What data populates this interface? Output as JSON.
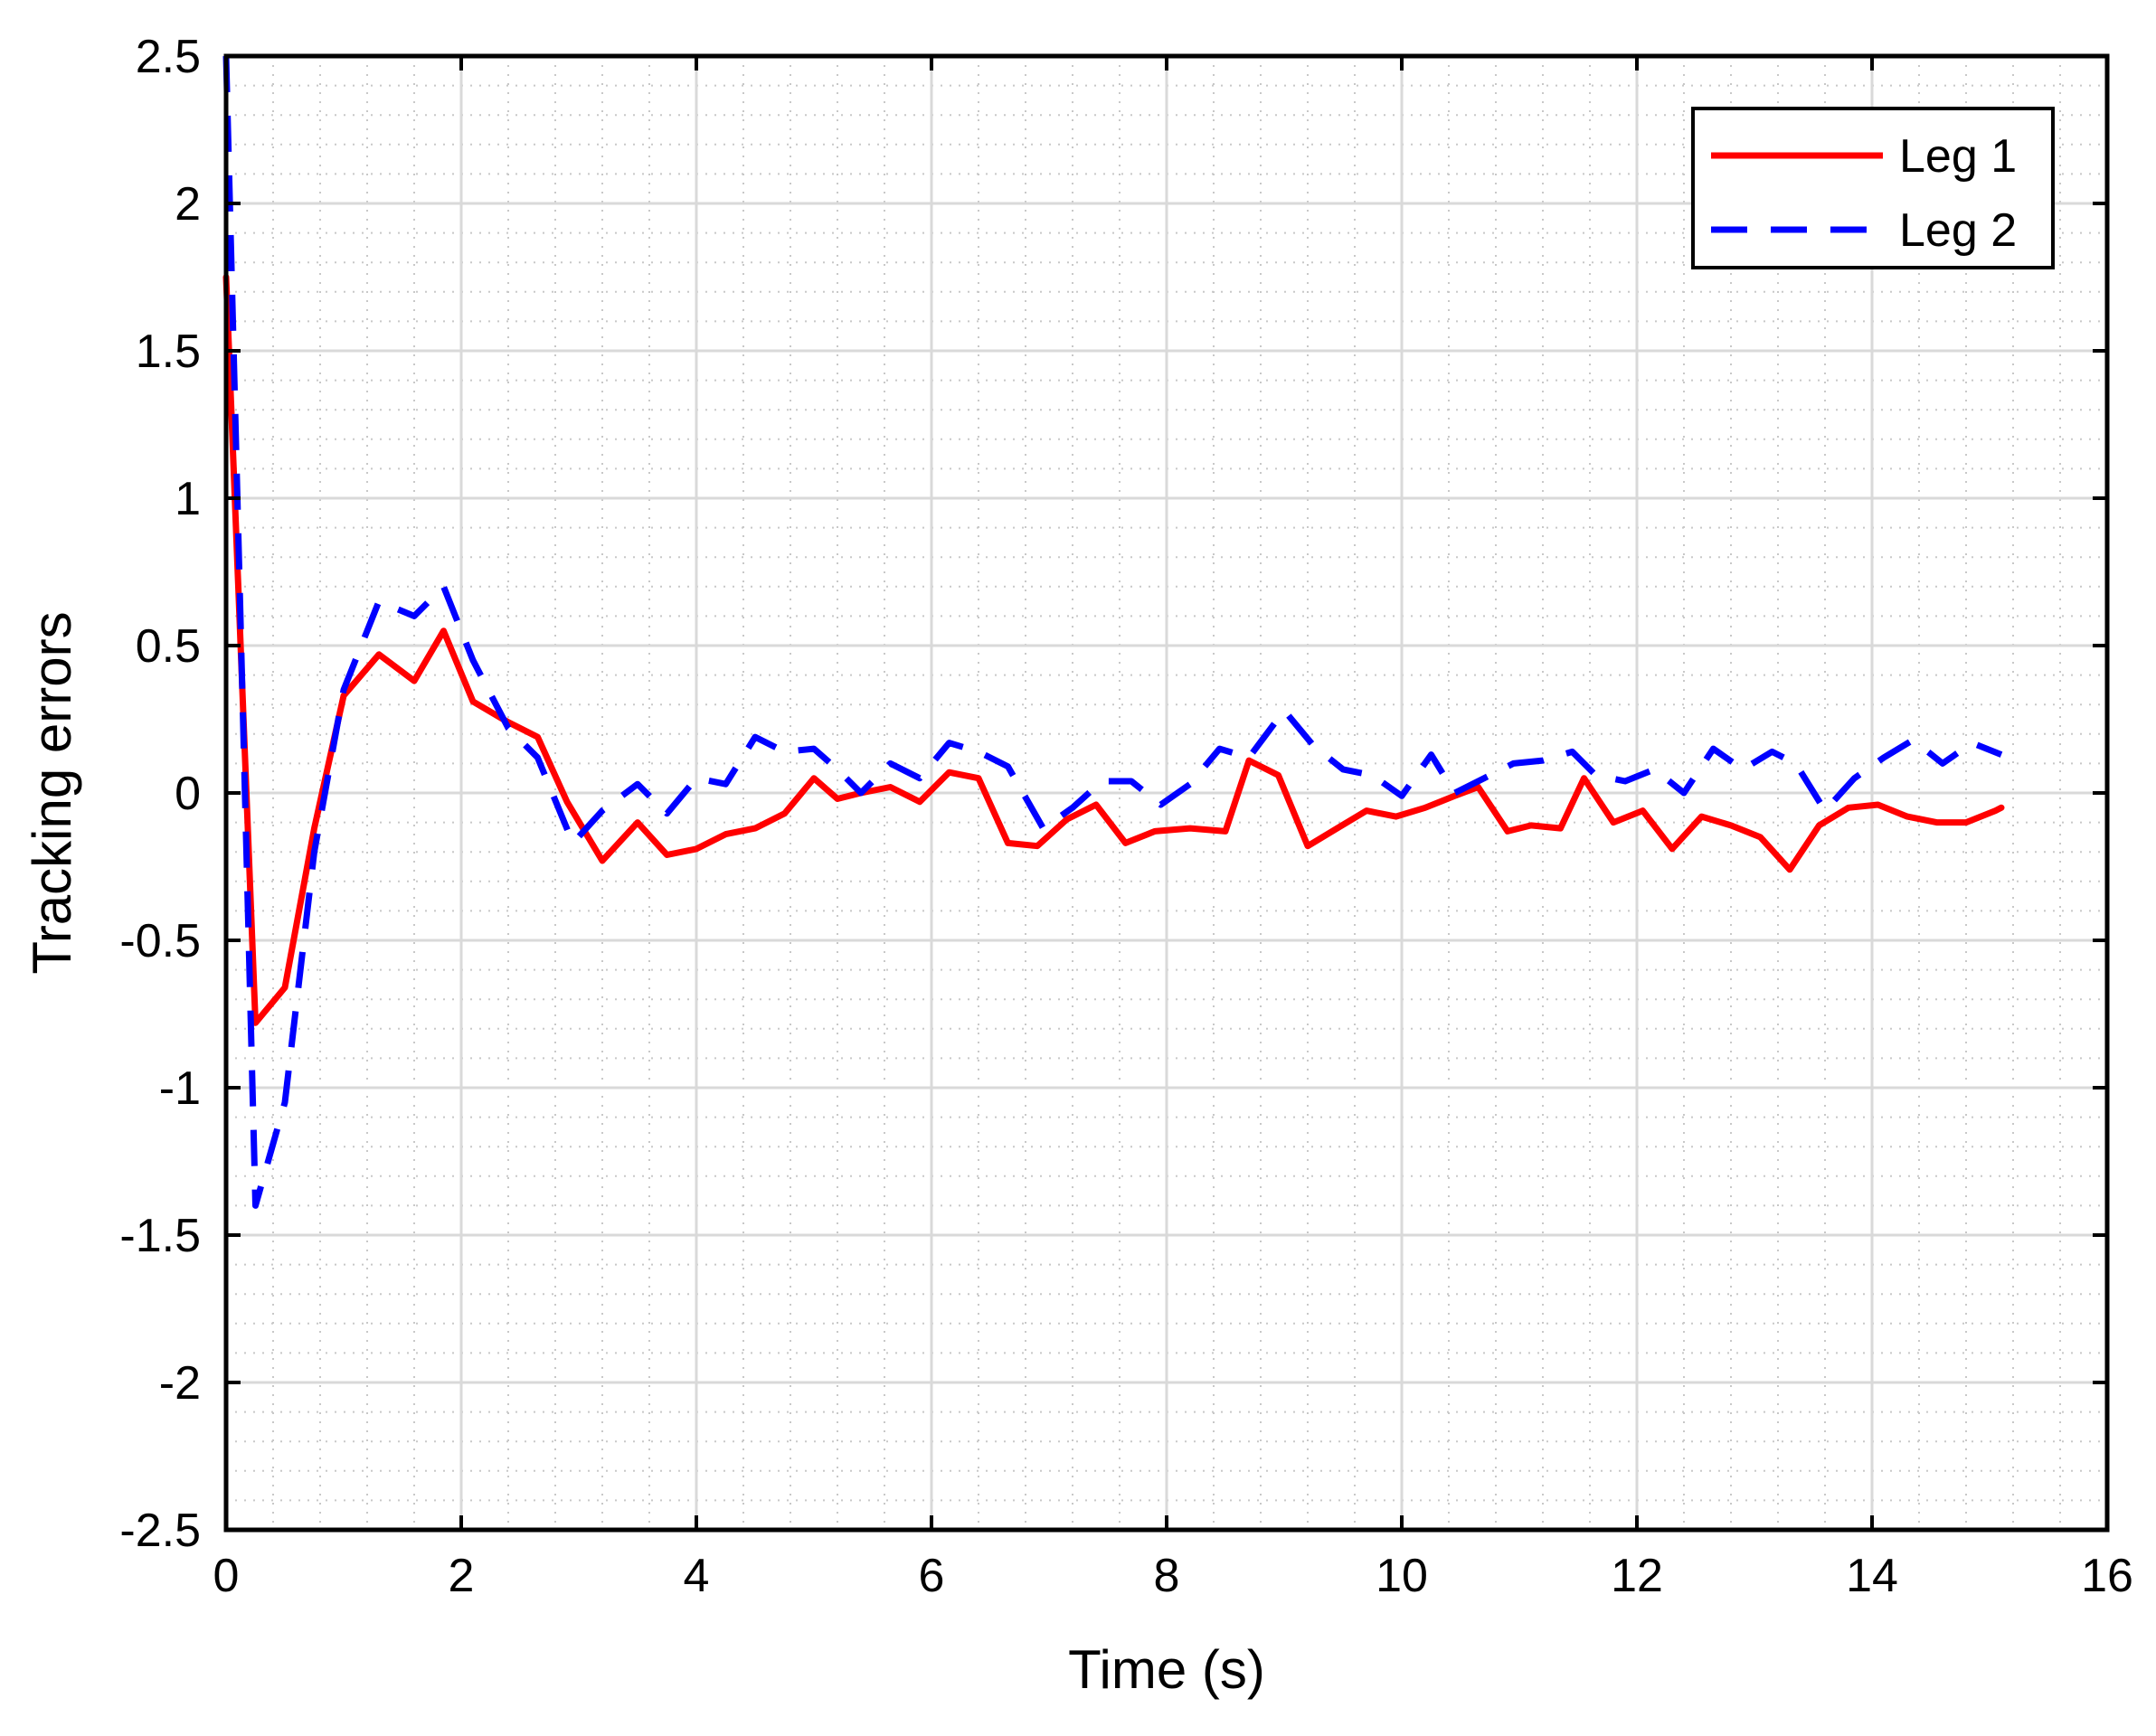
{
  "chart_data": {
    "type": "line",
    "title": "",
    "xlabel": "Time (s)",
    "ylabel": "Tracking errors",
    "xlim": [
      0,
      16
    ],
    "ylim": [
      -2.5,
      2.5
    ],
    "xticks": [
      "0",
      "2",
      "4",
      "6",
      "8",
      "10",
      "12",
      "14",
      "16"
    ],
    "yticks": [
      "2.5",
      "2",
      "1.5",
      "1",
      "0.5",
      "0",
      "-0.5",
      "-1",
      "-1.5",
      "-2",
      "-2.5"
    ],
    "grid": true,
    "minor_grid": true,
    "legend_position": "top-right",
    "series": [
      {
        "name": "Leg 1",
        "color": "#ff0000",
        "style": "solid",
        "x": [
          0,
          0.25,
          0.5,
          0.75,
          1.0,
          1.3,
          1.6,
          1.85,
          2.1,
          2.4,
          2.65,
          2.9,
          3.2,
          3.5,
          3.75,
          4.0,
          4.25,
          4.5,
          4.75,
          5.0,
          5.2,
          5.4,
          5.65,
          5.9,
          6.15,
          6.4,
          6.65,
          6.9,
          7.15,
          7.4,
          7.65,
          7.9,
          8.2,
          8.5,
          8.7,
          8.95,
          9.2,
          9.45,
          9.7,
          9.95,
          10.2,
          10.45,
          10.65,
          10.9,
          11.1,
          11.35,
          11.55,
          11.8,
          12.05,
          12.3,
          12.55,
          12.8,
          13.05,
          13.3,
          13.55,
          13.8,
          14.05,
          14.3,
          14.55,
          14.8,
          15.05,
          15.1
        ],
        "values": [
          1.75,
          -0.78,
          -0.66,
          -0.12,
          0.33,
          0.47,
          0.38,
          0.55,
          0.31,
          0.24,
          0.19,
          -0.03,
          -0.23,
          -0.1,
          -0.21,
          -0.19,
          -0.14,
          -0.12,
          -0.07,
          0.05,
          -0.02,
          0.0,
          0.02,
          -0.03,
          0.07,
          0.05,
          -0.17,
          -0.18,
          -0.09,
          -0.04,
          -0.17,
          -0.13,
          -0.12,
          -0.13,
          0.11,
          0.06,
          -0.18,
          -0.12,
          -0.06,
          -0.08,
          -0.05,
          -0.01,
          0.02,
          -0.13,
          -0.11,
          -0.12,
          0.05,
          -0.1,
          -0.06,
          -0.19,
          -0.08,
          -0.11,
          -0.15,
          -0.26,
          -0.11,
          -0.05,
          -0.04,
          -0.08,
          -0.1,
          -0.1,
          -0.06,
          -0.05
        ]
      },
      {
        "name": "Leg 2",
        "color": "#0000ff",
        "style": "dashed",
        "x": [
          0,
          0.25,
          0.5,
          0.75,
          1.0,
          1.3,
          1.6,
          1.85,
          2.1,
          2.4,
          2.65,
          2.95,
          3.2,
          3.5,
          3.75,
          4.0,
          4.25,
          4.5,
          4.75,
          5.0,
          5.2,
          5.4,
          5.65,
          5.9,
          6.15,
          6.4,
          6.65,
          6.95,
          7.2,
          7.45,
          7.7,
          7.95,
          8.2,
          8.45,
          8.7,
          9.0,
          9.25,
          9.5,
          9.75,
          10.0,
          10.25,
          10.45,
          10.7,
          10.95,
          11.2,
          11.45,
          11.65,
          11.9,
          12.15,
          12.4,
          12.65,
          12.9,
          13.15,
          13.35,
          13.6,
          13.85,
          14.1,
          14.35,
          14.6,
          14.85,
          15.1
        ],
        "values": [
          2.5,
          -1.4,
          -1.05,
          -0.2,
          0.35,
          0.65,
          0.6,
          0.7,
          0.45,
          0.22,
          0.12,
          -0.17,
          -0.06,
          0.03,
          -0.07,
          0.05,
          0.03,
          0.19,
          0.14,
          0.15,
          0.08,
          0.0,
          0.1,
          0.05,
          0.17,
          0.14,
          0.09,
          -0.12,
          -0.05,
          0.04,
          0.04,
          -0.04,
          0.03,
          0.15,
          0.12,
          0.28,
          0.16,
          0.08,
          0.06,
          -0.01,
          0.13,
          0.0,
          0.05,
          0.1,
          0.11,
          0.14,
          0.06,
          0.04,
          0.08,
          0.0,
          0.15,
          0.08,
          0.14,
          0.1,
          -0.06,
          0.05,
          0.12,
          0.18,
          0.1,
          0.17,
          0.13
        ]
      }
    ]
  }
}
